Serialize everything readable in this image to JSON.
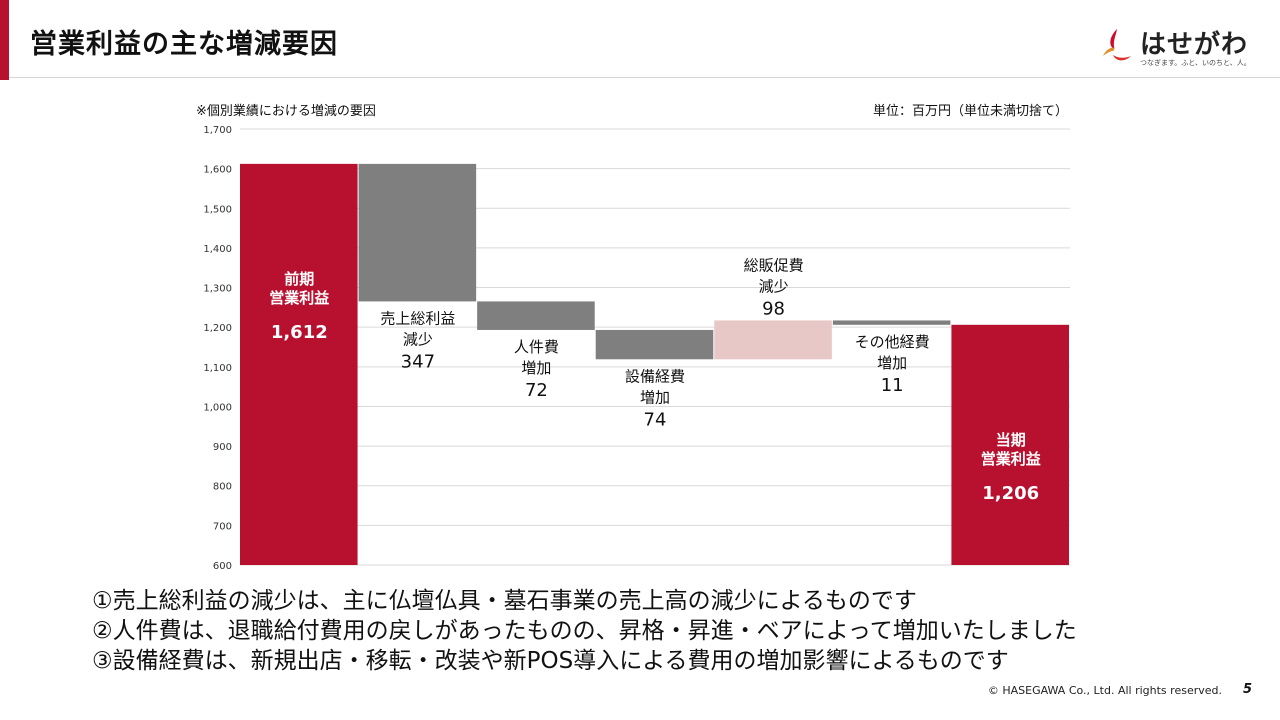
{
  "header": {
    "title": "営業利益の主な増減要因",
    "logo_name": "はせがわ",
    "logo_tagline": "つなぎます。ふと、いのちと、人。"
  },
  "chart_note": "※個別業績における増減の要因",
  "chart_unit": "単位：百万円（単位未満切捨て）",
  "chart_data": {
    "type": "bar",
    "subtype": "waterfall",
    "ylim": [
      600,
      1700
    ],
    "yticks": [
      600,
      700,
      800,
      900,
      1000,
      1100,
      1200,
      1300,
      1400,
      1500,
      1600,
      1700
    ],
    "ytick_labels": [
      "600",
      "700",
      "800",
      "900",
      "1,000",
      "1,100",
      "1,200",
      "1,300",
      "1,400",
      "1,500",
      "1,600",
      "1,700"
    ],
    "grid": true,
    "steps": [
      {
        "label_lines": [
          "前期",
          "営業利益"
        ],
        "value": 1612,
        "value_label": "1,612",
        "kind": "total",
        "color": "#b8102f"
      },
      {
        "label_lines": [
          "売上総利益",
          "減少"
        ],
        "value": -347,
        "value_label": "347",
        "kind": "decrease",
        "color": "#7f7f7f"
      },
      {
        "label_lines": [
          "人件費",
          "増加"
        ],
        "value": -72,
        "value_label": "72",
        "kind": "decrease",
        "color": "#7f7f7f"
      },
      {
        "label_lines": [
          "設備経費",
          "増加"
        ],
        "value": -74,
        "value_label": "74",
        "kind": "decrease",
        "color": "#7f7f7f"
      },
      {
        "label_lines": [
          "総販促費",
          "減少"
        ],
        "value": 98,
        "value_label": "98",
        "kind": "increase",
        "color": "#e8c8c6"
      },
      {
        "label_lines": [
          "その他経費",
          "増加"
        ],
        "value": -11,
        "value_label": "11",
        "kind": "decrease",
        "color": "#7f7f7f"
      },
      {
        "label_lines": [
          "当期",
          "営業利益"
        ],
        "value": 1206,
        "value_label": "1,206",
        "kind": "total",
        "color": "#b8102f"
      }
    ]
  },
  "bullets": [
    "①売上総利益の減少は、主に仏壇仏具・墓石事業の売上高の減少によるものです",
    "②人件費は、退職給付費用の戻しがあったものの、昇格・昇進・ベアによって増加いたしました",
    "③設備経費は、新規出店・移転・改装や新POS導入による費用の増加影響によるものです"
  ],
  "footer": {
    "copyright": "© HASEGAWA Co., Ltd. All rights reserved.",
    "page_number": "5"
  }
}
